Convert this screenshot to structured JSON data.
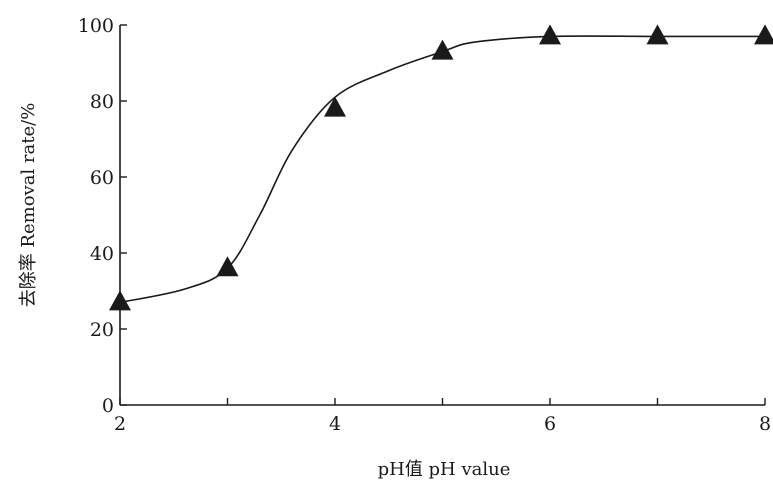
{
  "chart_data": {
    "type": "line",
    "title": "",
    "xlabel": "pH值 pH value",
    "ylabel": "去除率 Removal rate/%",
    "xlim": [
      2,
      8
    ],
    "ylim": [
      0,
      100
    ],
    "xticks": [
      "2",
      "4",
      "6",
      "8"
    ],
    "yticks": [
      "0",
      "20",
      "40",
      "60",
      "80",
      "100"
    ],
    "grid": false,
    "legend": "none",
    "marker": "triangle",
    "color": "#1a1a1a",
    "series": [
      {
        "x": [
          2,
          3,
          4,
          5,
          6,
          7,
          8
        ],
        "y": [
          27,
          36,
          78,
          93,
          97,
          97,
          97
        ]
      }
    ],
    "curve": {
      "x": [
        2,
        2.6,
        3,
        3.3,
        3.6,
        4,
        4.5,
        5,
        5.3,
        6,
        7,
        8
      ],
      "y": [
        27,
        30.5,
        36,
        50,
        67,
        81,
        88,
        93,
        95.5,
        97,
        97,
        97
      ]
    }
  }
}
